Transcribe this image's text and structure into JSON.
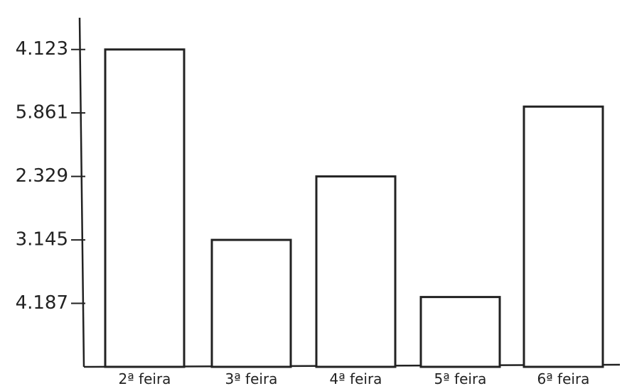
{
  "chart_data": {
    "type": "bar",
    "categories": [
      "2ª feira",
      "3ª feira",
      "4ª feira",
      "5ª feira",
      "6ª feira"
    ],
    "values": [
      5,
      2,
      3,
      1.1,
      4.1
    ],
    "ylim": [
      0,
      5.5
    ],
    "yticks": [
      {
        "value": 1,
        "label": "4.187"
      },
      {
        "value": 2,
        "label": "3.145"
      },
      {
        "value": 3,
        "label": "2.329"
      },
      {
        "value": 4,
        "label": "5.861"
      },
      {
        "value": 5,
        "label": "4.123"
      }
    ],
    "color": "#ffffff"
  }
}
